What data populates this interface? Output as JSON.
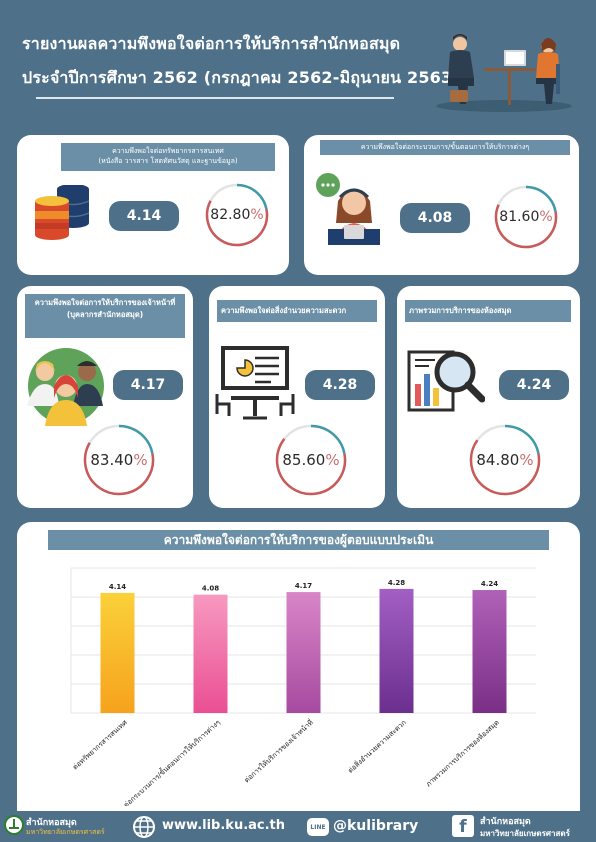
{
  "title": {
    "line1": "รายงานผลความพึงพอใจต่อการให้บริการสำนักหอสมุด",
    "line2": "ประจำปีการศึกษา 2562 (กรกฎาคม 2562-มิถุนายน 2563)"
  },
  "cards": [
    {
      "header": "ความพึงพอใจต่อทรัพยากรสารสนเทศ\n(หนังสือ วารสาร โสตทัศนวัสดุ และฐานข้อมูล)",
      "score": "4.14",
      "percent": "82.80",
      "fraction": 0.828,
      "icon": "database-icon"
    },
    {
      "header": "ความพึงพอใจต่อกระบวนการ/ขั้นตอนการให้บริการต่างๆ",
      "score": "4.08",
      "percent": "81.60",
      "fraction": 0.816,
      "icon": "support-agent-icon"
    },
    {
      "header": "ความพึงพอใจต่อการให้บริการของเจ้าหน้าที่ (บุคลากรสำนักหอสมุด)",
      "score": "4.17",
      "percent": "83.40",
      "fraction": 0.834,
      "icon": "staff-group-icon"
    },
    {
      "header": "ความพึงพอใจต่อสิ่งอำนวยความสะดวก",
      "score": "4.28",
      "percent": "85.60",
      "fraction": 0.856,
      "icon": "meeting-room-icon"
    },
    {
      "header": "ภาพรวมการบริการของห้องสมุด",
      "score": "4.24",
      "percent": "84.80",
      "fraction": 0.848,
      "icon": "analytics-magnifier-icon"
    }
  ],
  "percent_symbol": "%",
  "chart_data": {
    "type": "bar",
    "title": "ความพึงพอใจต่อการให้บริการของผู้ตอบแบบประเมิน",
    "categories": [
      "ต่อทรัพยากรสารสนเทศ",
      "ต่อกระบวนการ/ขั้นตอนการให้บริการต่างๆ",
      "ต่อการให้บริการของเจ้าหน้าที่",
      "ต่อสิ่งอำนวยความสะดวก",
      "ภาพรวมการบริการของห้องสมุด"
    ],
    "values": [
      4.14,
      4.08,
      4.17,
      4.28,
      4.24
    ],
    "value_labels": [
      "4.14",
      "4.08",
      "4.17",
      "4.28",
      "4.24"
    ],
    "colors": [
      [
        "#fbd13a",
        "#f6a21d"
      ],
      [
        "#f799c0",
        "#ea4f93"
      ],
      [
        "#d986c8",
        "#a64aa0"
      ],
      [
        "#a35fc4",
        "#6b2f8e"
      ],
      [
        "#b061b8",
        "#7a2f86"
      ]
    ],
    "grid": true
  },
  "footer": {
    "logo_line1": "สำนักหอสมุด",
    "logo_line2": "มหาวิทยาลัยเกษตรศาสตร์",
    "website": "www.lib.ku.ac.th",
    "line_badge": "LINE",
    "line_id": "@kulibrary",
    "fb_line1": "สำนักหอสมุด",
    "fb_line2": "มหาวิทยาลัยเกษตรศาสตร์"
  }
}
